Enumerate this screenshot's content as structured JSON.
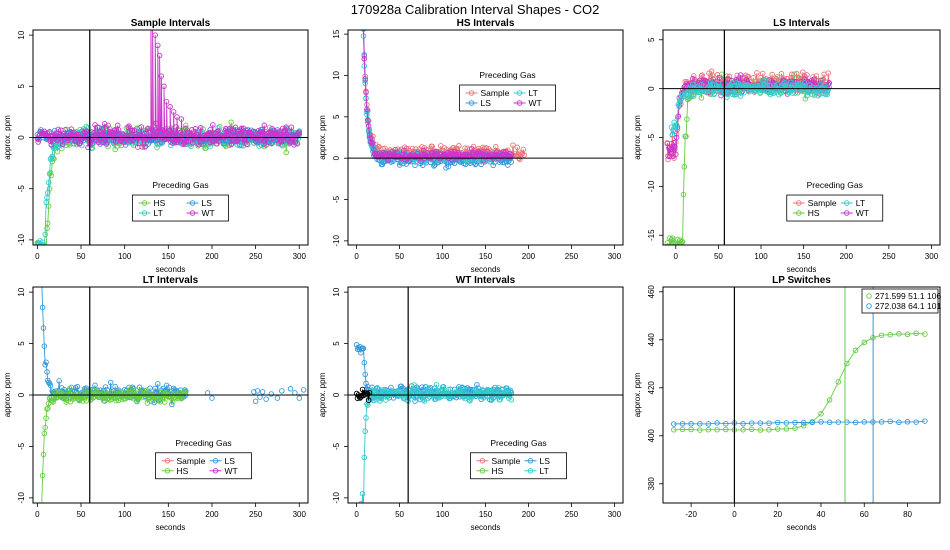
{
  "title": "170928a   Calibration Interval Shapes - CO2",
  "colors": {
    "Sample": "#e8767a",
    "HS": "#66cc44",
    "LS": "#3399dd",
    "LT": "#33cccc",
    "WT": "#cc33cc",
    "black": "#000000"
  },
  "chart_data": [
    {
      "type": "scatter",
      "title": "Sample Intervals",
      "xlabel": "seconds",
      "ylabel": "approx. ppm",
      "xlim": [
        -5,
        310
      ],
      "ylim": [
        -10.5,
        10.5
      ],
      "xticks": [
        0,
        50,
        100,
        150,
        200,
        250,
        300
      ],
      "yticks": [
        -10,
        -5,
        0,
        5,
        10
      ],
      "vline": 60,
      "hline": 0,
      "legend": {
        "title": "Preceding Gas",
        "entries": [
          "HS",
          "LS",
          "LT",
          "WT"
        ],
        "position": "bottom-center",
        "columns": 2
      },
      "series": [
        {
          "name": "HS",
          "x_range": [
            0,
            300
          ],
          "shape": "rise",
          "start": -11,
          "tau": 5,
          "plateau": 0,
          "noise": 1.0,
          "delay": 10,
          "jitter": 0.6
        },
        {
          "name": "LT",
          "x_range": [
            0,
            300
          ],
          "shape": "rise",
          "start": -10.5,
          "tau": 5,
          "plateau": 0,
          "noise": 0.8,
          "delay": 8,
          "jitter": 0.5
        },
        {
          "name": "LS",
          "x_range": [
            0,
            300
          ],
          "shape": "flat",
          "plateau": 0,
          "noise": 0.7
        },
        {
          "name": "WT",
          "x_range": [
            0,
            300
          ],
          "shape": "flat",
          "plateau": 0.2,
          "noise": 0.9,
          "spike": [
            [
              130,
              12
            ],
            [
              132,
              11
            ],
            [
              135,
              10
            ],
            [
              138,
              9
            ],
            [
              140,
              8
            ],
            [
              142,
              6
            ],
            [
              145,
              5
            ],
            [
              148,
              3.5
            ],
            [
              152,
              3
            ],
            [
              156,
              2.5
            ],
            [
              160,
              2
            ],
            [
              165,
              1.8
            ]
          ]
        }
      ]
    },
    {
      "type": "scatter",
      "title": "HS Intervals",
      "xlabel": "seconds",
      "ylabel": "approx. ppm",
      "xlim": [
        -10,
        310
      ],
      "ylim": [
        -10.5,
        15.5
      ],
      "xticks": [
        0,
        50,
        100,
        150,
        200,
        250,
        300
      ],
      "yticks": [
        -10,
        -5,
        0,
        5,
        10,
        15
      ],
      "vline": null,
      "hline": 0,
      "legend": {
        "title": "Preceding Gas",
        "entries": [
          "Sample",
          "LT",
          "LS",
          "WT"
        ],
        "position": "top-right",
        "columns": 2
      },
      "series": [
        {
          "name": "Sample",
          "x_range": [
            8,
            195
          ],
          "shape": "decay",
          "start": 16,
          "tau": 4,
          "plateau": 0.7,
          "noise": 0.8,
          "delay": 8,
          "jitter": 1.0
        },
        {
          "name": "LS",
          "x_range": [
            8,
            180
          ],
          "shape": "decay",
          "start": 15.5,
          "tau": 4,
          "plateau": -0.2,
          "noise": 0.7,
          "delay": 8,
          "jitter": 1.0
        },
        {
          "name": "LT",
          "x_range": [
            8,
            170
          ],
          "shape": "decay",
          "start": 15,
          "tau": 4,
          "plateau": 0.2,
          "noise": 0.5,
          "delay": 8,
          "jitter": 1.0
        },
        {
          "name": "WT",
          "x_range": [
            8,
            180
          ],
          "shape": "decay",
          "start": 15.5,
          "tau": 4,
          "plateau": 0.3,
          "noise": 0.6,
          "delay": 8,
          "jitter": 1.0
        }
      ]
    },
    {
      "type": "scatter",
      "title": "LS Intervals",
      "xlabel": "seconds",
      "ylabel": "approx. ppm",
      "xlim": [
        -15,
        310
      ],
      "ylim": [
        -16,
        6
      ],
      "xticks": [
        0,
        50,
        100,
        150,
        200,
        250,
        300
      ],
      "yticks": [
        -15,
        -10,
        -5,
        0,
        5
      ],
      "vline": 57,
      "hline": 0,
      "legend": {
        "title": "Preceding Gas",
        "entries": [
          "Sample",
          "LT",
          "HS",
          "WT"
        ],
        "position": "bottom-right",
        "columns": 2
      },
      "series": [
        {
          "name": "HS",
          "x_range": [
            -10,
            175
          ],
          "shape": "rise",
          "start": -16,
          "tau": 3,
          "plateau": 0.2,
          "noise": 0.9,
          "delay": 8,
          "jitter": 0.6
        },
        {
          "name": "Sample",
          "x_range": [
            -10,
            180
          ],
          "shape": "rise",
          "start": -6,
          "tau": 4,
          "plateau": 0.6,
          "noise": 1.0,
          "delay": 0,
          "jitter": 0.5
        },
        {
          "name": "WT",
          "x_range": [
            -10,
            180
          ],
          "shape": "rise",
          "start": -6,
          "tau": 4,
          "plateau": 0.3,
          "noise": 0.8,
          "delay": 0,
          "jitter": 0.5
        },
        {
          "name": "LT",
          "x_range": [
            -5,
            180
          ],
          "shape": "rise",
          "start": -4,
          "tau": 4,
          "plateau": 0.0,
          "noise": 0.7,
          "delay": 0,
          "jitter": 0.5
        }
      ]
    },
    {
      "type": "scatter",
      "title": "LT Intervals",
      "xlabel": "seconds",
      "ylabel": "approx. ppm",
      "xlim": [
        -5,
        310
      ],
      "ylim": [
        -10.5,
        10.5
      ],
      "xticks": [
        0,
        50,
        100,
        150,
        200,
        250,
        300
      ],
      "yticks": [
        -10,
        -5,
        0,
        5,
        10
      ],
      "vline": 60,
      "hline": 0,
      "legend": {
        "title": "Preceding Gas",
        "entries": [
          "Sample",
          "LS",
          "HS",
          "WT"
        ],
        "position": "bottom-right",
        "columns": 2
      },
      "series": [
        {
          "name": "LS",
          "x_range": [
            5,
            170
          ],
          "shape": "decay",
          "start": 12,
          "tau": 3,
          "plateau": 0.2,
          "noise": 0.8,
          "delay": 5,
          "jitter": 1.0,
          "extra": [
            [
              195,
              0.2
            ],
            [
              200,
              -0.3
            ],
            [
              248,
              0.3
            ],
            [
              250,
              -0.6
            ],
            [
              252,
              0.4
            ],
            [
              255,
              -0.2
            ],
            [
              258,
              0.3
            ],
            [
              262,
              -0.4
            ],
            [
              268,
              0.1
            ],
            [
              275,
              -0.3
            ],
            [
              280,
              0.4
            ],
            [
              290,
              0.6
            ],
            [
              295,
              0.2
            ],
            [
              300,
              -0.3
            ],
            [
              305,
              0.5
            ]
          ]
        },
        {
          "name": "HS",
          "x_range": [
            5,
            170
          ],
          "shape": "rise",
          "start": -10.5,
          "tau": 3,
          "plateau": -0.1,
          "noise": 0.6,
          "delay": 5,
          "jitter": 1.0
        }
      ]
    },
    {
      "type": "scatter",
      "title": "WT Intervals",
      "xlabel": "seconds",
      "ylabel": "approx. ppm",
      "xlim": [
        -10,
        310
      ],
      "ylim": [
        -10.5,
        10.5
      ],
      "xticks": [
        0,
        50,
        100,
        150,
        200,
        250,
        300
      ],
      "yticks": [
        -10,
        -5,
        0,
        5,
        10
      ],
      "vline": 60,
      "hline": 0,
      "legend": {
        "title": "Preceding Gas",
        "entries": [
          "Sample",
          "LS",
          "HS",
          "LT"
        ],
        "position": "bottom-right",
        "columns": 2
      },
      "series": [
        {
          "name": "LS",
          "x_range": [
            0,
            180
          ],
          "shape": "decay",
          "start": 4.5,
          "tau": 2,
          "plateau": 0.2,
          "noise": 0.6,
          "delay": 8,
          "jitter": 0.3
        },
        {
          "name": "LT",
          "x_range": [
            5,
            180
          ],
          "shape": "rise",
          "start": -10.5,
          "tau": 2,
          "plateau": 0.1,
          "noise": 0.6,
          "delay": 8,
          "jitter": 0.6
        },
        {
          "name": "black",
          "x_range": [
            0,
            15
          ],
          "shape": "flat",
          "plateau": 0,
          "noise": 0.5
        }
      ]
    },
    {
      "type": "scatter",
      "title": "LP Switches",
      "xlabel": "seconds",
      "ylabel": "approx. ppm",
      "xlim": [
        -33,
        95
      ],
      "ylim": [
        372,
        462
      ],
      "xticks": [
        -20,
        0,
        20,
        40,
        60,
        80
      ],
      "yticks": [
        380,
        400,
        420,
        440,
        460
      ],
      "vline": 0,
      "hline": null,
      "vlines_colored": [
        {
          "x": 51.1,
          "series": "HS"
        },
        {
          "x": 64.1,
          "series": "LS"
        }
      ],
      "legend": {
        "title": "",
        "entries": [
          "271.599 51.1 106",
          "272.038 64.1 101"
        ],
        "colors": [
          "HS",
          "LS"
        ],
        "position": "top-right",
        "columns": 1
      },
      "series": [
        {
          "name": "HS",
          "x_range": [
            -28,
            88
          ],
          "shape": "sigmoid",
          "start": 402.5,
          "end": 442.5,
          "mid": 48,
          "width": 5
        },
        {
          "name": "LS",
          "x_range": [
            -28,
            88
          ],
          "shape": "linear",
          "start": 405,
          "end": 406,
          "mid": 0,
          "width": 1
        }
      ]
    }
  ]
}
